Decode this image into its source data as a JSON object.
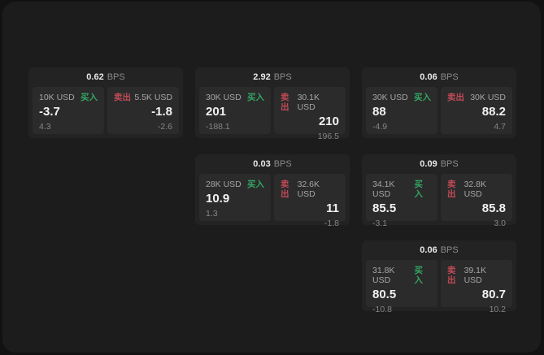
{
  "labels": {
    "buy": "买入",
    "sell": "卖出",
    "bps_unit": "BPS"
  },
  "colors": {
    "buy_green": "#32a661",
    "sell_red": "#c14a55",
    "card_bg": "#232324",
    "panel_bg": "#2b2b2c",
    "surface_bg": "#1c1c1d"
  },
  "cards": [
    {
      "bps": "0.62",
      "buy": {
        "size": "10K USD",
        "value": "-3.7",
        "sub": "4.3"
      },
      "sell": {
        "size": "5.5K USD",
        "value": "-1.8",
        "sub": "-2.6"
      }
    },
    {
      "bps": "2.92",
      "buy": {
        "size": "30K USD",
        "value": "201",
        "sub": "-188.1"
      },
      "sell": {
        "size": "30.1K USD",
        "value": "210",
        "sub": "196.5"
      }
    },
    {
      "bps": "0.06",
      "buy": {
        "size": "30K USD",
        "value": "88",
        "sub": "-4.9"
      },
      "sell": {
        "size": "30K USD",
        "value": "88.2",
        "sub": "4.7"
      }
    },
    {
      "bps": "0.03",
      "buy": {
        "size": "28K USD",
        "value": "10.9",
        "sub": "1.3"
      },
      "sell": {
        "size": "32.6K USD",
        "value": "11",
        "sub": "-1.8"
      }
    },
    {
      "bps": "0.09",
      "buy": {
        "size": "34.1K USD",
        "value": "85.5",
        "sub": "-3.1"
      },
      "sell": {
        "size": "32.8K USD",
        "value": "85.8",
        "sub": "3.0"
      }
    },
    {
      "bps": "0.06",
      "buy": {
        "size": "31.8K USD",
        "value": "80.5",
        "sub": "-10.8"
      },
      "sell": {
        "size": "39.1K USD",
        "value": "80.7",
        "sub": "10.2"
      }
    }
  ]
}
